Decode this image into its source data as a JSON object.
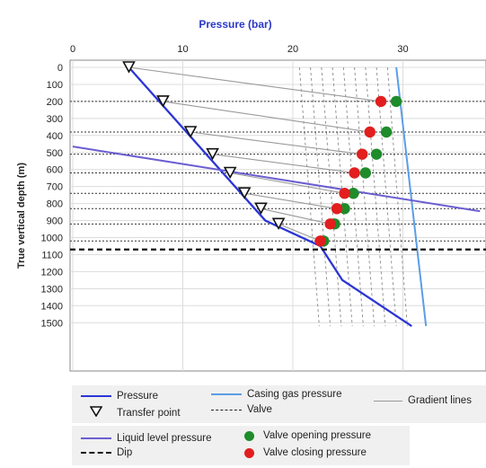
{
  "chart_data": {
    "type": "line",
    "title": "Pressure (bar)",
    "xlabel": "Pressure (bar)",
    "ylabel": "True vertical depth (m)",
    "xlim": [
      0,
      35
    ],
    "ylim": [
      0,
      1550
    ],
    "x_ticks": [
      "0",
      "10",
      "20",
      "30"
    ],
    "y_ticks": [
      "0",
      "100",
      "200",
      "300",
      "400",
      "500",
      "600",
      "700",
      "800",
      "900",
      "1000",
      "1100",
      "1200",
      "1300",
      "1400",
      "1500"
    ],
    "colors": {
      "pressure": "#2b35d6",
      "casing": "#5b9ee6",
      "liquid": "#6a5ed0",
      "gradient": "#9a9a9a",
      "open": "#1e8c2a",
      "close": "#e21e1e",
      "dip": "#111111"
    },
    "series": [
      {
        "name": "Pressure",
        "points": [
          [
            5.1,
            0
          ],
          [
            17.5,
            900
          ],
          [
            22.5,
            1050
          ],
          [
            24.5,
            1250
          ],
          [
            30.8,
            1520
          ]
        ]
      },
      {
        "name": "Casing gas pressure",
        "points": [
          [
            29.4,
            0
          ],
          [
            32.1,
            1520
          ]
        ]
      },
      {
        "name": "Liquid level pressure",
        "points": [
          [
            0,
            465
          ],
          [
            37,
            845
          ]
        ]
      },
      {
        "name": "Dip",
        "depth": 1070
      }
    ],
    "valves": [
      200,
      380,
      510,
      620,
      740,
      830,
      920,
      1020
    ],
    "transfer_points": [
      [
        5.1,
        0
      ],
      [
        8.2,
        200
      ],
      [
        10.7,
        380
      ],
      [
        12.7,
        510
      ],
      [
        14.3,
        620
      ],
      [
        15.6,
        740
      ],
      [
        17.1,
        830
      ],
      [
        18.7,
        920
      ]
    ],
    "opening_pressure": [
      [
        29.4,
        200
      ],
      [
        28.5,
        380
      ],
      [
        27.6,
        510
      ],
      [
        26.6,
        620
      ],
      [
        25.5,
        740
      ],
      [
        24.7,
        830
      ],
      [
        23.8,
        920
      ],
      [
        22.8,
        1020
      ]
    ],
    "closing_pressure": [
      [
        28.0,
        200
      ],
      [
        27.0,
        380
      ],
      [
        26.3,
        510
      ],
      [
        25.6,
        620
      ],
      [
        24.7,
        740
      ],
      [
        24.0,
        830
      ],
      [
        23.4,
        920
      ],
      [
        22.5,
        1020
      ]
    ],
    "gradient_lines": [
      [
        [
          5.1,
          0
        ],
        [
          28.0,
          200
        ]
      ],
      [
        [
          8.2,
          200
        ],
        [
          27.0,
          380
        ]
      ],
      [
        [
          10.7,
          380
        ],
        [
          26.3,
          510
        ]
      ],
      [
        [
          12.7,
          510
        ],
        [
          25.6,
          620
        ]
      ],
      [
        [
          14.3,
          620
        ],
        [
          24.7,
          740
        ]
      ],
      [
        [
          15.6,
          740
        ],
        [
          24.0,
          830
        ]
      ],
      [
        [
          17.1,
          830
        ],
        [
          23.4,
          920
        ]
      ],
      [
        [
          18.7,
          920
        ],
        [
          22.5,
          1020
        ]
      ]
    ],
    "hatch_lines": [
      [
        [
          20.6,
          0
        ],
        [
          22.4,
          1520
        ]
      ],
      [
        [
          21.6,
          0
        ],
        [
          23.4,
          1520
        ]
      ],
      [
        [
          22.6,
          0
        ],
        [
          24.4,
          1520
        ]
      ],
      [
        [
          23.6,
          0
        ],
        [
          25.4,
          1520
        ]
      ],
      [
        [
          24.6,
          0
        ],
        [
          26.4,
          1520
        ]
      ],
      [
        [
          25.6,
          0
        ],
        [
          27.4,
          1520
        ]
      ],
      [
        [
          26.6,
          0
        ],
        [
          28.4,
          1520
        ]
      ],
      [
        [
          27.6,
          0
        ],
        [
          29.4,
          1520
        ]
      ],
      [
        [
          28.6,
          0
        ],
        [
          30.4,
          1520
        ]
      ]
    ],
    "legend": {
      "row1": [
        {
          "key": "pressure",
          "label": "Pressure"
        },
        {
          "key": "casing",
          "label": "Casing gas pressure"
        },
        {
          "key": "gradient",
          "label": "Gradient lines"
        },
        {
          "key": "transfer",
          "label": "Transfer point"
        },
        {
          "key": "valve",
          "label": "Valve"
        }
      ],
      "row2": [
        {
          "key": "liquid",
          "label": "Liquid level pressure"
        },
        {
          "key": "open",
          "label": "Valve opening pressure"
        },
        {
          "key": "dip",
          "label": "Dip"
        },
        {
          "key": "close",
          "label": "Valve closing pressure"
        }
      ]
    }
  }
}
